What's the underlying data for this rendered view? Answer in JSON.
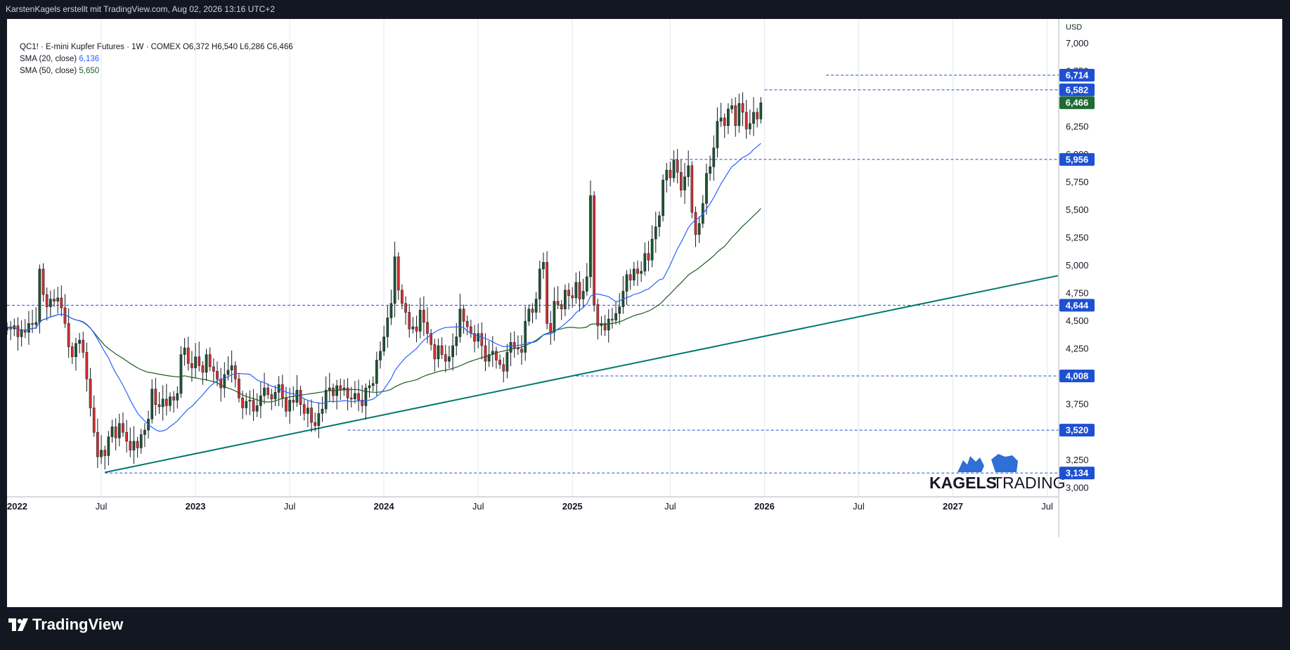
{
  "header": {
    "attribution": "KarstenKagels erstellt mit TradingView.com, Aug 02, 2026 13:16 UTC+2"
  },
  "legend": {
    "symbol_line": "QC1! · E-mini Kupfer Futures · 1W · COMEX",
    "ohlc": "O6,372  H6,540  L6,286  C6,466",
    "sma20_label": "SMA (20, close)",
    "sma20_value": "6,136",
    "sma50_label": "SMA (50, close)",
    "sma50_value": "5,650"
  },
  "footer": {
    "brand": "TradingView"
  },
  "watermark": {
    "text_bold": "KAGELS",
    "text_light": "TRADING"
  },
  "colors": {
    "up": "#1e5631",
    "down": "#d32f2f",
    "sma20": "#2962ff",
    "sma50": "#1b5e20",
    "trendline": "#00796b",
    "level": "#1e50d2",
    "last_price": "#1e6b33",
    "background": "#ffffff",
    "frame": "#131722"
  },
  "chart_data": {
    "type": "candlestick",
    "timeframe": "1W",
    "currency": "USD",
    "y_axis": {
      "unit": "USD",
      "ticks": [
        "7,000",
        "6,750",
        "6,250",
        "6,000",
        "5,750",
        "5,500",
        "5,250",
        "5,000",
        "4,750",
        "4,500",
        "4,250",
        "3,750",
        "3,250",
        "3,000"
      ],
      "range": [
        2.92,
        7.22
      ]
    },
    "x_axis": {
      "labels": [
        "2022",
        "Jul",
        "2023",
        "Jul",
        "2024",
        "Jul",
        "2025",
        "Jul",
        "2026",
        "Jul",
        "2027",
        "Jul"
      ],
      "range": [
        "2022-01-03",
        "2027-07-26"
      ]
    },
    "last_price": {
      "value": 6.466,
      "label": "6,466"
    },
    "horizontal_levels": [
      {
        "value": 6.714,
        "label": "6,714",
        "from": "2026-05-04"
      },
      {
        "value": 6.582,
        "label": "6,582",
        "from": "2026-01-05"
      },
      {
        "value": 5.956,
        "label": "5,956",
        "from": "2025-07-07"
      },
      {
        "value": 4.644,
        "label": "4,644",
        "from": "2022-01-03"
      },
      {
        "value": 4.008,
        "label": "4,008",
        "from": "2025-01-06"
      },
      {
        "value": 3.52,
        "label": "3,520",
        "from": "2023-10-23"
      },
      {
        "value": 3.134,
        "label": "3,134",
        "from": "2022-07-11"
      }
    ],
    "trendline": {
      "start": {
        "date": "2022-07-11",
        "value": 3.14
      },
      "end": {
        "date": "2027-07-26",
        "value": 4.91
      }
    },
    "closes": [
      4.45,
      4.43,
      4.46,
      4.36,
      4.42,
      4.4,
      4.48,
      4.47,
      4.49,
      4.97,
      4.74,
      4.63,
      4.7,
      4.68,
      4.71,
      4.62,
      4.48,
      4.27,
      4.18,
      4.3,
      4.33,
      4.22,
      3.98,
      3.72,
      3.5,
      3.28,
      3.34,
      3.29,
      3.46,
      3.55,
      3.45,
      3.58,
      3.5,
      3.42,
      3.34,
      3.42,
      3.36,
      3.48,
      3.52,
      3.62,
      3.89,
      3.75,
      3.73,
      3.8,
      3.74,
      3.82,
      3.79,
      3.85,
      4.2,
      4.26,
      4.12,
      4.08,
      4.18,
      4.1,
      4.04,
      4.2,
      4.09,
      4.05,
      3.98,
      3.9,
      4.02,
      4.06,
      4.1,
      3.98,
      3.81,
      3.72,
      3.78,
      3.79,
      3.69,
      3.74,
      3.83,
      3.9,
      3.84,
      3.8,
      3.86,
      3.93,
      3.81,
      3.69,
      3.79,
      3.77,
      3.88,
      3.75,
      3.67,
      3.72,
      3.59,
      3.56,
      3.67,
      3.71,
      3.88,
      3.9,
      3.83,
      3.92,
      3.88,
      3.9,
      3.81,
      3.8,
      3.85,
      3.79,
      3.74,
      3.9,
      3.92,
      3.94,
      4.15,
      4.23,
      4.36,
      4.53,
      4.66,
      5.08,
      4.78,
      4.66,
      4.58,
      4.43,
      4.45,
      4.41,
      4.6,
      4.49,
      4.39,
      4.29,
      4.16,
      4.28,
      4.2,
      4.14,
      4.18,
      4.28,
      4.36,
      4.61,
      4.5,
      4.45,
      4.39,
      4.32,
      4.39,
      4.28,
      4.14,
      4.2,
      4.23,
      4.15,
      4.11,
      4.05,
      4.22,
      4.31,
      4.26,
      4.25,
      4.22,
      4.5,
      4.61,
      4.58,
      4.7,
      4.97,
      5.03,
      4.48,
      4.4,
      4.68,
      4.65,
      4.61,
      4.78,
      4.73,
      4.71,
      4.85,
      4.7,
      4.77,
      4.9,
      5.63,
      4.65,
      4.46,
      4.48,
      4.42,
      4.52,
      4.51,
      4.57,
      4.63,
      4.77,
      4.92,
      4.87,
      4.97,
      4.93,
      4.95,
      5.11,
      5.05,
      5.24,
      5.35,
      5.45,
      5.77,
      5.86,
      5.79,
      5.95,
      5.84,
      5.68,
      5.8,
      5.9,
      5.48,
      5.28,
      5.38,
      5.56,
      5.83,
      5.89,
      6.06,
      6.3,
      6.33,
      6.26,
      6.41,
      6.44,
      6.26,
      6.46,
      6.38,
      6.23,
      6.28,
      6.38,
      6.32,
      6.466
    ]
  }
}
